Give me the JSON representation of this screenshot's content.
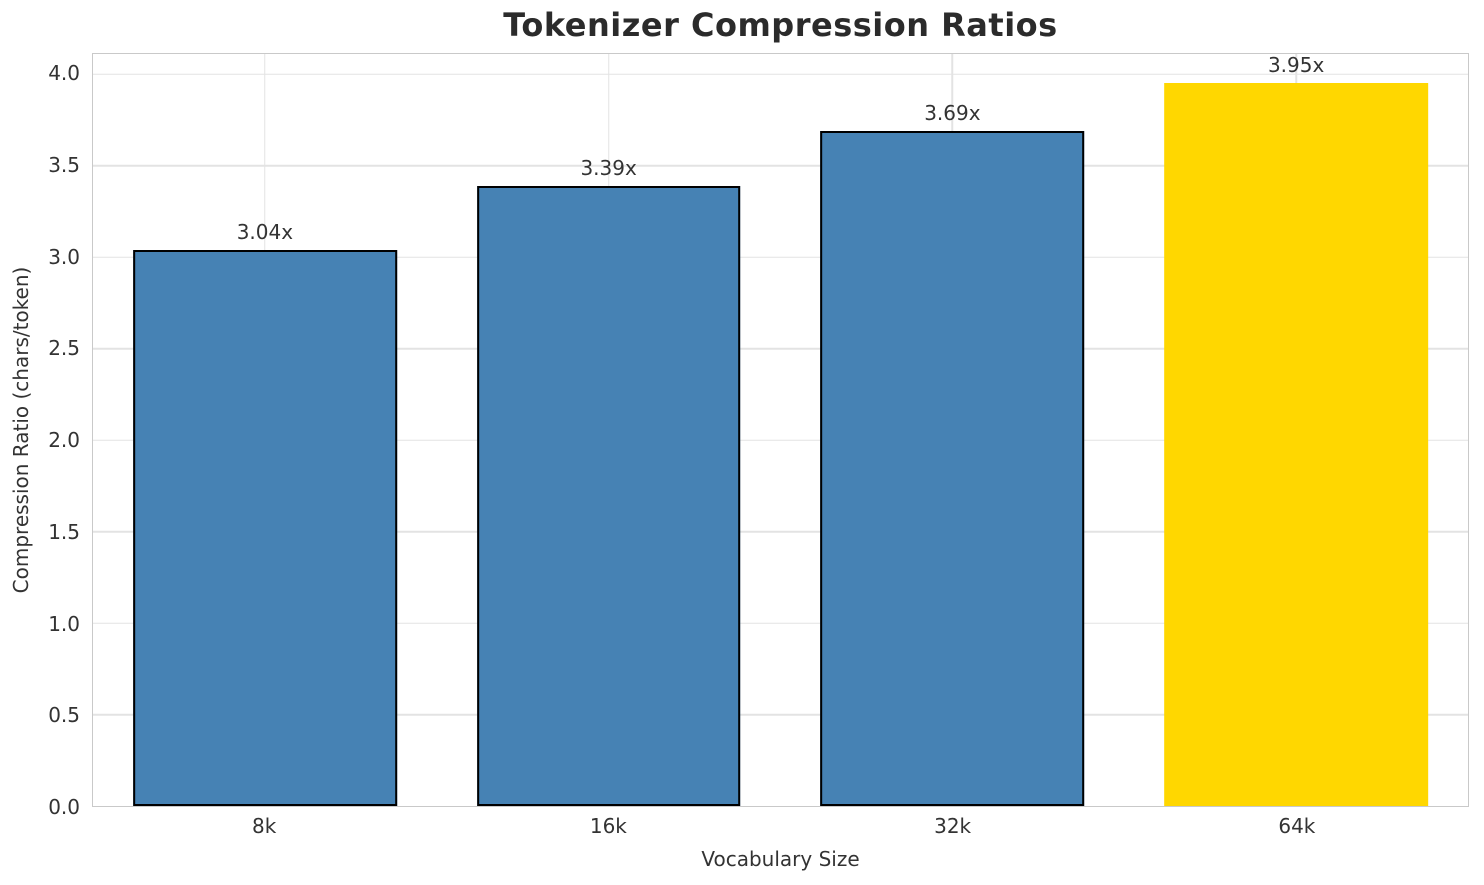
{
  "chart_data": {
    "type": "bar",
    "title": "Tokenizer Compression Ratios",
    "xlabel": "Vocabulary Size",
    "ylabel": "Compression Ratio (chars/token)",
    "categories": [
      "8k",
      "16k",
      "32k",
      "64k"
    ],
    "values": [
      3.04,
      3.39,
      3.69,
      3.95
    ],
    "bar_labels": [
      "3.04x",
      "3.39x",
      "3.69x",
      "3.95x"
    ],
    "yticks": [
      0.0,
      0.5,
      1.0,
      1.5,
      2.0,
      2.5,
      3.0,
      3.5,
      4.0
    ],
    "ytick_labels": [
      "0.0",
      "0.5",
      "1.0",
      "1.5",
      "2.0",
      "2.5",
      "3.0",
      "3.5",
      "4.0"
    ],
    "ylim": [
      0,
      4.11
    ],
    "grid": true,
    "legend": "none",
    "highlight_index": 3,
    "bar_edge_widths": [
      2,
      2,
      2,
      0
    ],
    "colors": {
      "bar_default": "#4682B4",
      "bar_highlight": "#FFD700",
      "bar_edge": "#000000",
      "grid": "#e3e3e3",
      "spine": "#c9c9c9",
      "title_text": "#2b2b2b",
      "tick_text": "#333333",
      "background": "#ffffff"
    }
  }
}
